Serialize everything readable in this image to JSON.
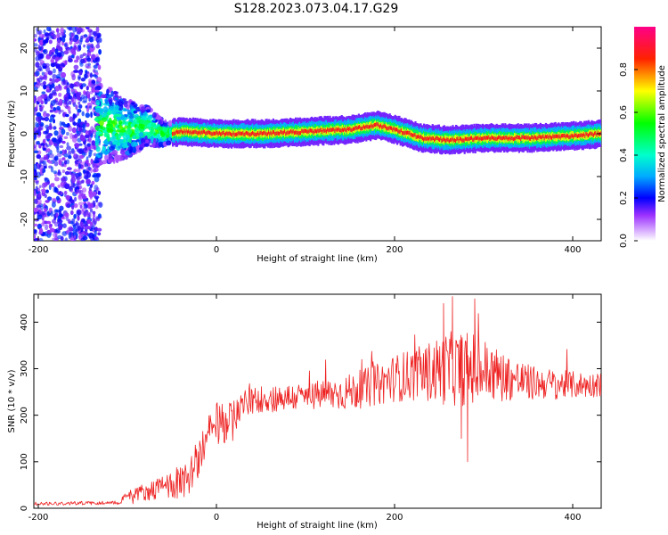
{
  "title": "S128.2023.073.04.17.G29",
  "colors": {
    "snr_line": "#ee2222",
    "axis": "#000000",
    "background": "#ffffff"
  },
  "chart_data": [
    {
      "type": "heatmap",
      "panel": "top",
      "xlabel": "Height of straight line (km)",
      "ylabel": "Frequency (Hz)",
      "xlim": [
        -205,
        432
      ],
      "ylim": [
        -25,
        25
      ],
      "xticks": [
        "-200",
        "0",
        "200",
        "400"
      ],
      "yticks": [
        "-20",
        "-10",
        "0",
        "10",
        "20"
      ],
      "colorbar": {
        "label": "Normalized spectral amplitude",
        "range": [
          0,
          1
        ],
        "ticks": [
          "0.0",
          "0.2",
          "0.4",
          "0.6",
          "0.8"
        ],
        "colormap": [
          "#ffffff",
          "#7b00ff",
          "#0000ff",
          "#00ffff",
          "#00ff00",
          "#ffff00",
          "#ff0000",
          "#ff00aa"
        ]
      },
      "ridge": {
        "description_points": [
          [
            -120,
            2
          ],
          [
            -100,
            1
          ],
          [
            -80,
            2
          ],
          [
            -60,
            0
          ],
          [
            -40,
            0.5
          ],
          [
            0,
            0
          ],
          [
            50,
            0
          ],
          [
            100,
            0.5
          ],
          [
            150,
            1
          ],
          [
            180,
            2
          ],
          [
            200,
            1
          ],
          [
            230,
            -1
          ],
          [
            260,
            -1.5
          ],
          [
            300,
            -1
          ],
          [
            350,
            -1
          ],
          [
            400,
            -0.5
          ],
          [
            430,
            0
          ]
        ]
      }
    },
    {
      "type": "line",
      "panel": "bottom",
      "xlabel": "Height of straight line (km)",
      "ylabel": "SNR (10 * v/v)",
      "xlim": [
        -205,
        432
      ],
      "ylim": [
        0,
        460
      ],
      "xticks": [
        "-200",
        "0",
        "200",
        "400"
      ],
      "yticks": [
        "0",
        "100",
        "200",
        "300",
        "400"
      ],
      "series": [
        {
          "baseline": [
            [
              -205,
              10
            ],
            [
              -110,
              12
            ],
            [
              -100,
              30
            ],
            [
              -80,
              35
            ],
            [
              -60,
              45
            ],
            [
              -40,
              55
            ],
            [
              -30,
              70
            ],
            [
              -20,
              110
            ],
            [
              -10,
              150
            ],
            [
              0,
              180
            ],
            [
              10,
              180
            ],
            [
              20,
              200
            ],
            [
              30,
              225
            ],
            [
              50,
              235
            ],
            [
              100,
              240
            ],
            [
              150,
              250
            ],
            [
              180,
              265
            ],
            [
              200,
              280
            ],
            [
              230,
              290
            ],
            [
              260,
              300
            ],
            [
              290,
              300
            ],
            [
              320,
              285
            ],
            [
              350,
              270
            ],
            [
              400,
              265
            ],
            [
              432,
              265
            ]
          ],
          "spread": [
            [
              -205,
              4
            ],
            [
              -110,
              4
            ],
            [
              -100,
              12
            ],
            [
              -60,
              25
            ],
            [
              -30,
              40
            ],
            [
              0,
              50
            ],
            [
              30,
              30
            ],
            [
              100,
              30
            ],
            [
              180,
              45
            ],
            [
              230,
              60
            ],
            [
              260,
              80
            ],
            [
              290,
              80
            ],
            [
              320,
              55
            ],
            [
              360,
              35
            ],
            [
              432,
              25
            ]
          ],
          "peaks": [
            [
              255,
              440
            ],
            [
              265,
              455
            ],
            [
              290,
              450
            ],
            [
              275,
              150
            ],
            [
              282,
              100
            ]
          ]
        }
      ]
    }
  ]
}
